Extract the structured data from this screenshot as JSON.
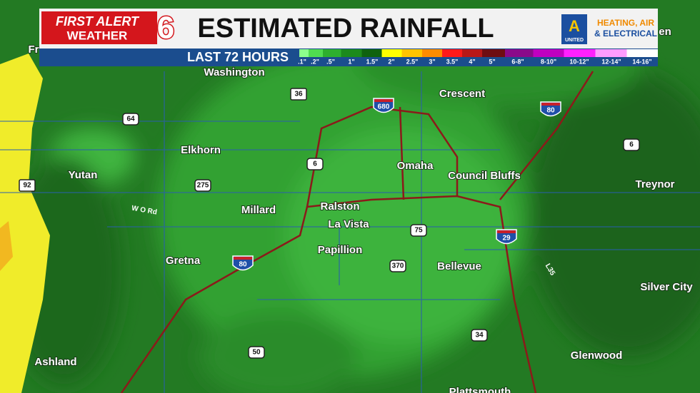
{
  "header": {
    "brand_line1": "FIRST ALERT",
    "brand_line2": "WEATHER",
    "channel": "6",
    "title": "ESTIMATED RAINFALL",
    "subtitle": "LAST 72 HOURS"
  },
  "sponsor": {
    "line1": "HEATING, AIR",
    "line2": "& ELECTRICAL",
    "badge": "UNITED"
  },
  "legend": {
    "items": [
      {
        "label": ".1\"",
        "color": "#8cff8c"
      },
      {
        "label": ".2\"",
        "color": "#50dc50"
      },
      {
        "label": ".5\"",
        "color": "#2eb02e"
      },
      {
        "label": "1\"",
        "color": "#1c8a1c"
      },
      {
        "label": "1.5\"",
        "color": "#0f620f"
      },
      {
        "label": "2\"",
        "color": "#ffff00"
      },
      {
        "label": "2.5\"",
        "color": "#ffc400"
      },
      {
        "label": "3\"",
        "color": "#ff8c00"
      },
      {
        "label": "3.5\"",
        "color": "#ff1a1a"
      },
      {
        "label": "4\"",
        "color": "#b81818"
      },
      {
        "label": "5\"",
        "color": "#6e0d12"
      },
      {
        "label": "6-8\"",
        "color": "#8a0a8a"
      },
      {
        "label": "8-10\"",
        "color": "#c000c0"
      },
      {
        "label": "10-12\"",
        "color": "#ff20ff"
      },
      {
        "label": "12-14\"",
        "color": "#ff9cff"
      },
      {
        "label": "14-16\"",
        "color": "#ffffff"
      }
    ]
  },
  "places": [
    "Washington",
    "Crescent",
    "Elkhorn",
    "Yutan",
    "Omaha",
    "Council Bluffs",
    "Treynor",
    "Millard",
    "Ralston",
    "La Vista",
    "Papillion",
    "Gretna",
    "Bellevue",
    "Silver City",
    "Ashland",
    "Glenwood",
    "Plattsmouth",
    "Fr",
    "en"
  ],
  "roads": [
    "36",
    "64",
    "680",
    "80",
    "6",
    "6",
    "92",
    "275",
    "75",
    "29",
    "80",
    "370",
    "34",
    "50",
    "L35",
    "W O Rd"
  ]
}
